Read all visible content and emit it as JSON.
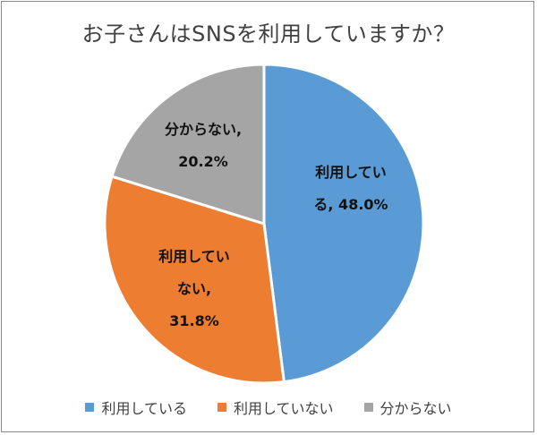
{
  "chart_data": {
    "type": "pie",
    "title": "お子さんはSNSを利用していますか？",
    "categories": [
      "利用している",
      "利用していない",
      "分からない"
    ],
    "values": [
      48.0,
      31.8,
      20.2
    ],
    "unit": "%",
    "colors": [
      "#5b9bd5",
      "#ed7d31",
      "#a5a5a5"
    ],
    "data_labels": [
      [
        "利用してい",
        "る, 48.0%"
      ],
      [
        "利用してい",
        "ない,",
        "31.8%"
      ],
      [
        "分からない,",
        "20.2%"
      ]
    ],
    "legend": {
      "placement": "bottom",
      "entries": [
        "利用している",
        "利用していない",
        "分からない"
      ]
    },
    "start_angle": "12 o'clock",
    "direction": "clockwise"
  }
}
